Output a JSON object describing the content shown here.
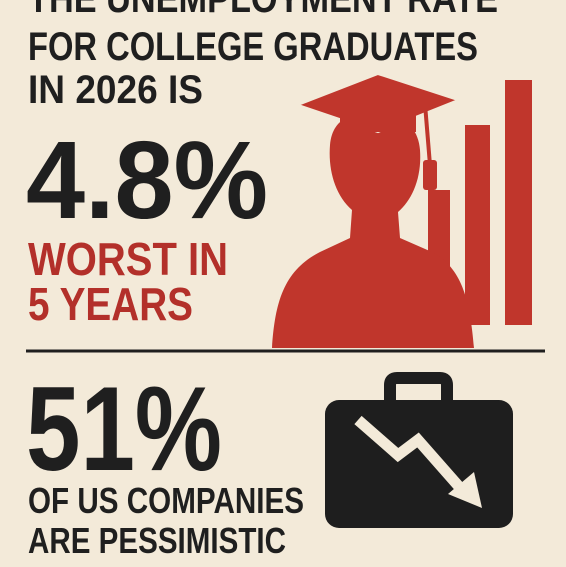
{
  "headline": {
    "lines": [
      "THE UNEMPLOYMENT RATE",
      "FOR COLLEGE GRADUATES",
      "IN 2026 IS"
    ],
    "stat": "4.8%",
    "note": [
      "WORST IN",
      "5 YEARS"
    ]
  },
  "second": {
    "stat": "51%",
    "lines": [
      "OF US COMPANIES",
      "ARE PESSIMISTIC"
    ]
  }
}
